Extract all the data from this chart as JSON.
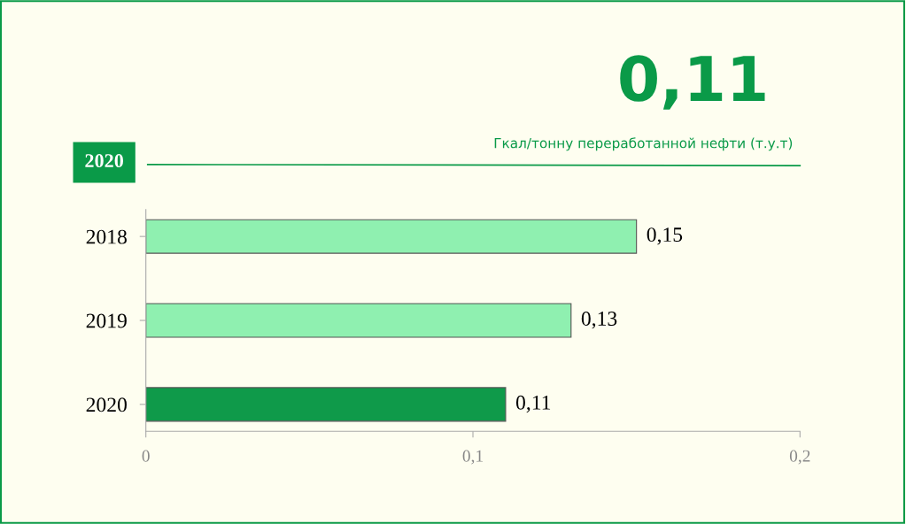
{
  "chart_data": {
    "type": "bar",
    "orientation": "horizontal",
    "title": "0,11",
    "subtitle": "Гкал/тонну переработанной нефти (т.у.т)",
    "annotations": [
      "2020"
    ],
    "categories": [
      "2018",
      "2019",
      "2020"
    ],
    "values": [
      0.15,
      0.13,
      0.11
    ],
    "colors": [
      "#8ff0b0",
      "#8ff0b0",
      "#0f9a4a"
    ],
    "value_labels": [
      "0,15",
      "0,13",
      "0,11"
    ],
    "xlim": [
      0,
      0.2
    ],
    "xticks": [
      {
        "value": 0,
        "label": "0"
      },
      {
        "value": 0.1,
        "label": "0,1"
      },
      {
        "value": 0.2,
        "label": "0,2"
      }
    ],
    "grid": false,
    "legend": false
  }
}
